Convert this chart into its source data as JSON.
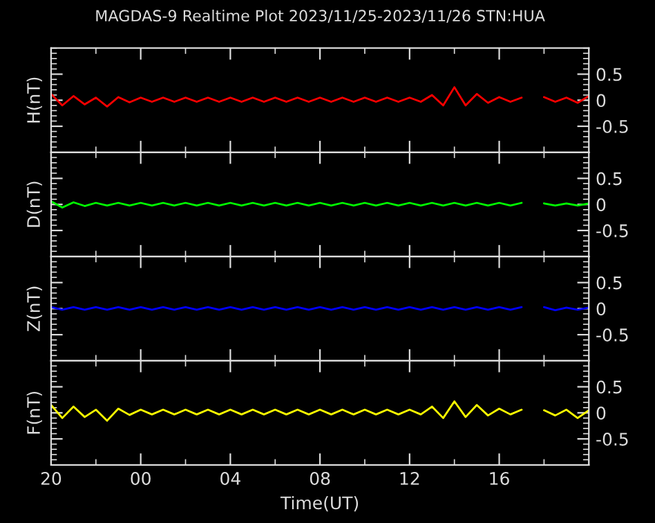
{
  "chart_data": [
    {
      "type": "line",
      "title": "MAGDAS-9 Realtime Plot 2023/11/25-2023/11/26 STN:HUA",
      "ylabel": "H(nT)",
      "tick_labels": "y",
      "x": [
        "2023-11-25T20:00",
        "2023-11-25T20:30",
        "2023-11-25T21:00",
        "2023-11-25T21:30",
        "2023-11-25T22:00",
        "2023-11-25T22:30",
        "2023-11-25T23:00",
        "2023-11-25T23:30",
        "2023-11-26T00:00",
        "2023-11-26T00:30",
        "2023-11-26T01:00",
        "2023-11-26T01:30",
        "2023-11-26T02:00",
        "2023-11-26T02:30",
        "2023-11-26T03:00",
        "2023-11-26T03:30",
        "2023-11-26T04:00",
        "2023-11-26T04:30",
        "2023-11-26T05:00",
        "2023-11-26T05:30",
        "2023-11-26T06:00",
        "2023-11-26T06:30",
        "2023-11-26T07:00",
        "2023-11-26T07:30",
        "2023-11-26T08:00",
        "2023-11-26T08:30",
        "2023-11-26T09:00",
        "2023-11-26T09:30",
        "2023-11-26T10:00",
        "2023-11-26T10:30",
        "2023-11-26T11:00",
        "2023-11-26T11:30",
        "2023-11-26T12:00",
        "2023-11-26T12:30",
        "2023-11-26T13:00",
        "2023-11-26T13:30",
        "2023-11-26T14:00",
        "2023-11-26T14:30",
        "2023-11-26T15:00",
        "2023-11-26T15:30",
        "2023-11-26T16:00",
        "2023-11-26T16:30",
        "2023-11-26T17:00",
        "2023-11-26T17:30",
        "2023-11-26T18:00",
        "2023-11-26T18:30",
        "2023-11-26T19:00",
        "2023-11-26T19:30",
        "2023-11-26T20:00"
      ],
      "series": [
        {
          "color": "#ff0000",
          "values": [
            0.12,
            -0.1,
            0.08,
            -0.08,
            0.05,
            -0.12,
            0.06,
            -0.04,
            0.05,
            -0.03,
            0.05,
            -0.03,
            0.05,
            -0.03,
            0.05,
            -0.03,
            0.05,
            -0.03,
            0.05,
            -0.03,
            0.05,
            -0.03,
            0.05,
            -0.03,
            0.05,
            -0.03,
            0.05,
            -0.03,
            0.05,
            -0.03,
            0.05,
            -0.03,
            0.05,
            -0.03,
            0.1,
            -0.1,
            0.25,
            -0.1,
            0.12,
            -0.05,
            0.06,
            -0.03,
            0.05,
            null,
            0.06,
            -0.03,
            0.05,
            -0.05,
            0.08
          ]
        }
      ],
      "xlim": [
        "2023-11-25T20:00",
        "2023-11-26T20:00"
      ],
      "xticks": [
        {
          "value": "2023-11-25T20:00",
          "label": null
        },
        {
          "value": "2023-11-26T00:00",
          "label": null
        },
        {
          "value": "2023-11-26T04:00",
          "label": null
        },
        {
          "value": "2023-11-26T08:00",
          "label": null
        },
        {
          "value": "2023-11-26T12:00",
          "label": null
        },
        {
          "value": "2023-11-26T16:00",
          "label": null
        }
      ],
      "ylim": [
        -1,
        1
      ],
      "yticks": [
        -0.5,
        0,
        0.5
      ]
    },
    {
      "type": "line",
      "ylabel": "D(nT)",
      "tick_labels": "y",
      "x": [
        "2023-11-25T20:00",
        "2023-11-25T20:30",
        "2023-11-25T21:00",
        "2023-11-25T21:30",
        "2023-11-25T22:00",
        "2023-11-25T22:30",
        "2023-11-25T23:00",
        "2023-11-25T23:30",
        "2023-11-26T00:00",
        "2023-11-26T00:30",
        "2023-11-26T01:00",
        "2023-11-26T01:30",
        "2023-11-26T02:00",
        "2023-11-26T02:30",
        "2023-11-26T03:00",
        "2023-11-26T03:30",
        "2023-11-26T04:00",
        "2023-11-26T04:30",
        "2023-11-26T05:00",
        "2023-11-26T05:30",
        "2023-11-26T06:00",
        "2023-11-26T06:30",
        "2023-11-26T07:00",
        "2023-11-26T07:30",
        "2023-11-26T08:00",
        "2023-11-26T08:30",
        "2023-11-26T09:00",
        "2023-11-26T09:30",
        "2023-11-26T10:00",
        "2023-11-26T10:30",
        "2023-11-26T11:00",
        "2023-11-26T11:30",
        "2023-11-26T12:00",
        "2023-11-26T12:30",
        "2023-11-26T13:00",
        "2023-11-26T13:30",
        "2023-11-26T14:00",
        "2023-11-26T14:30",
        "2023-11-26T15:00",
        "2023-11-26T15:30",
        "2023-11-26T16:00",
        "2023-11-26T16:30",
        "2023-11-26T17:00",
        "2023-11-26T17:30",
        "2023-11-26T18:00",
        "2023-11-26T18:30",
        "2023-11-26T19:00",
        "2023-11-26T19:30",
        "2023-11-26T20:00"
      ],
      "series": [
        {
          "color": "#00ff00",
          "values": [
            0.06,
            -0.06,
            0.04,
            -0.03,
            0.03,
            -0.02,
            0.03,
            -0.02,
            0.03,
            -0.02,
            0.03,
            -0.02,
            0.03,
            -0.02,
            0.03,
            -0.02,
            0.03,
            -0.02,
            0.03,
            -0.02,
            0.03,
            -0.02,
            0.03,
            -0.02,
            0.03,
            -0.02,
            0.03,
            -0.02,
            0.03,
            -0.02,
            0.03,
            -0.02,
            0.03,
            -0.02,
            0.03,
            -0.02,
            0.03,
            -0.02,
            0.03,
            -0.02,
            0.03,
            -0.02,
            0.03,
            null,
            0.02,
            -0.02,
            0.02,
            -0.02,
            0.02
          ]
        }
      ],
      "xlim": [
        "2023-11-25T20:00",
        "2023-11-26T20:00"
      ],
      "xticks": [
        {
          "value": "2023-11-25T20:00",
          "label": null
        },
        {
          "value": "2023-11-26T00:00",
          "label": null
        },
        {
          "value": "2023-11-26T04:00",
          "label": null
        },
        {
          "value": "2023-11-26T08:00",
          "label": null
        },
        {
          "value": "2023-11-26T12:00",
          "label": null
        },
        {
          "value": "2023-11-26T16:00",
          "label": null
        }
      ],
      "ylim": [
        -1,
        1
      ],
      "yticks": [
        -0.5,
        0,
        0.5
      ]
    },
    {
      "type": "line",
      "ylabel": "Z(nT)",
      "tick_labels": "y",
      "x": [
        "2023-11-25T20:00",
        "2023-11-25T20:30",
        "2023-11-25T21:00",
        "2023-11-25T21:30",
        "2023-11-25T22:00",
        "2023-11-25T22:30",
        "2023-11-25T23:00",
        "2023-11-25T23:30",
        "2023-11-26T00:00",
        "2023-11-26T00:30",
        "2023-11-26T01:00",
        "2023-11-26T01:30",
        "2023-11-26T02:00",
        "2023-11-26T02:30",
        "2023-11-26T03:00",
        "2023-11-26T03:30",
        "2023-11-26T04:00",
        "2023-11-26T04:30",
        "2023-11-26T05:00",
        "2023-11-26T05:30",
        "2023-11-26T06:00",
        "2023-11-26T06:30",
        "2023-11-26T07:00",
        "2023-11-26T07:30",
        "2023-11-26T08:00",
        "2023-11-26T08:30",
        "2023-11-26T09:00",
        "2023-11-26T09:30",
        "2023-11-26T10:00",
        "2023-11-26T10:30",
        "2023-11-26T11:00",
        "2023-11-26T11:30",
        "2023-11-26T12:00",
        "2023-11-26T12:30",
        "2023-11-26T13:00",
        "2023-11-26T13:30",
        "2023-11-26T14:00",
        "2023-11-26T14:30",
        "2023-11-26T15:00",
        "2023-11-26T15:30",
        "2023-11-26T16:00",
        "2023-11-26T16:30",
        "2023-11-26T17:00",
        "2023-11-26T17:30",
        "2023-11-26T18:00",
        "2023-11-26T18:30",
        "2023-11-26T19:00",
        "2023-11-26T19:30",
        "2023-11-26T20:00"
      ],
      "series": [
        {
          "color": "#0000ff",
          "values": [
            0.03,
            -0.02,
            0.03,
            -0.02,
            0.03,
            -0.02,
            0.03,
            -0.02,
            0.03,
            -0.02,
            0.03,
            -0.02,
            0.03,
            -0.02,
            0.03,
            -0.02,
            0.03,
            -0.02,
            0.03,
            -0.02,
            0.03,
            -0.02,
            0.03,
            -0.02,
            0.03,
            -0.02,
            0.03,
            -0.02,
            0.03,
            -0.02,
            0.03,
            -0.02,
            0.03,
            -0.02,
            0.03,
            -0.02,
            0.03,
            -0.02,
            0.03,
            -0.02,
            0.03,
            -0.02,
            0.03,
            null,
            0.03,
            -0.03,
            0.02,
            -0.02,
            0.02
          ]
        }
      ],
      "xlim": [
        "2023-11-25T20:00",
        "2023-11-26T20:00"
      ],
      "xticks": [
        {
          "value": "2023-11-25T20:00",
          "label": null
        },
        {
          "value": "2023-11-26T00:00",
          "label": null
        },
        {
          "value": "2023-11-26T04:00",
          "label": null
        },
        {
          "value": "2023-11-26T08:00",
          "label": null
        },
        {
          "value": "2023-11-26T12:00",
          "label": null
        },
        {
          "value": "2023-11-26T16:00",
          "label": null
        }
      ],
      "ylim": [
        -1,
        1
      ],
      "yticks": [
        -0.5,
        0,
        0.5
      ]
    },
    {
      "type": "line",
      "ylabel": "F(nT)",
      "xlabel": "Time(UT)",
      "x": [
        "2023-11-25T20:00",
        "2023-11-25T20:30",
        "2023-11-25T21:00",
        "2023-11-25T21:30",
        "2023-11-25T22:00",
        "2023-11-25T22:30",
        "2023-11-25T23:00",
        "2023-11-25T23:30",
        "2023-11-26T00:00",
        "2023-11-26T00:30",
        "2023-11-26T01:00",
        "2023-11-26T01:30",
        "2023-11-26T02:00",
        "2023-11-26T02:30",
        "2023-11-26T03:00",
        "2023-11-26T03:30",
        "2023-11-26T04:00",
        "2023-11-26T04:30",
        "2023-11-26T05:00",
        "2023-11-26T05:30",
        "2023-11-26T06:00",
        "2023-11-26T06:30",
        "2023-11-26T07:00",
        "2023-11-26T07:30",
        "2023-11-26T08:00",
        "2023-11-26T08:30",
        "2023-11-26T09:00",
        "2023-11-26T09:30",
        "2023-11-26T10:00",
        "2023-11-26T10:30",
        "2023-11-26T11:00",
        "2023-11-26T11:30",
        "2023-11-26T12:00",
        "2023-11-26T12:30",
        "2023-11-26T13:00",
        "2023-11-26T13:30",
        "2023-11-26T14:00",
        "2023-11-26T14:30",
        "2023-11-26T15:00",
        "2023-11-26T15:30",
        "2023-11-26T16:00",
        "2023-11-26T16:30",
        "2023-11-26T17:00",
        "2023-11-26T17:30",
        "2023-11-26T18:00",
        "2023-11-26T18:30",
        "2023-11-26T19:00",
        "2023-11-26T19:30",
        "2023-11-26T20:00"
      ],
      "series": [
        {
          "color": "#ffff00",
          "values": [
            0.15,
            -0.1,
            0.12,
            -0.08,
            0.06,
            -0.15,
            0.08,
            -0.04,
            0.06,
            -0.03,
            0.06,
            -0.03,
            0.06,
            -0.03,
            0.06,
            -0.03,
            0.06,
            -0.03,
            0.06,
            -0.03,
            0.06,
            -0.03,
            0.06,
            -0.03,
            0.06,
            -0.03,
            0.06,
            -0.03,
            0.06,
            -0.03,
            0.06,
            -0.03,
            0.06,
            -0.03,
            0.12,
            -0.1,
            0.22,
            -0.08,
            0.15,
            -0.05,
            0.08,
            -0.03,
            0.06,
            null,
            0.05,
            -0.05,
            0.06,
            -0.1,
            0.05
          ]
        }
      ],
      "xlim": [
        "2023-11-25T20:00",
        "2023-11-26T20:00"
      ],
      "xticks": [
        {
          "value": "2023-11-25T20:00",
          "label": "20"
        },
        {
          "value": "2023-11-26T00:00",
          "label": "00"
        },
        {
          "value": "2023-11-26T04:00",
          "label": "04"
        },
        {
          "value": "2023-11-26T08:00",
          "label": "08"
        },
        {
          "value": "2023-11-26T12:00",
          "label": "12"
        },
        {
          "value": "2023-11-26T16:00",
          "label": "16"
        }
      ],
      "ylim": [
        -1,
        1
      ],
      "yticks": [
        -0.5,
        0,
        0.5
      ]
    }
  ]
}
